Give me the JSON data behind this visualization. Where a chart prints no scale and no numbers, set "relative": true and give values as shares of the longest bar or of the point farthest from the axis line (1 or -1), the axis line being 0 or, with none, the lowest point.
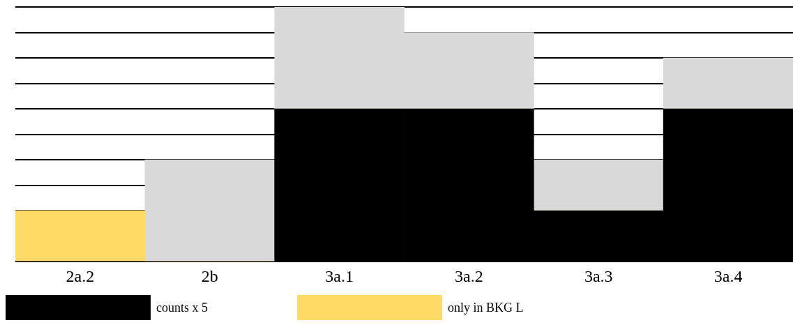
{
  "chart_data": {
    "type": "bar",
    "relative": true,
    "stacked": true,
    "grid": "y",
    "legend": "bottom",
    "categories": [
      "2a.2",
      "2b",
      "3a.1",
      "3a.2",
      "3a.3",
      "3a.4"
    ],
    "series": [
      {
        "name": "counts x 5",
        "color": "#000000",
        "values": [
          0,
          0,
          0.6,
          0.6,
          0.2,
          0.6
        ]
      },
      {
        "name": "only in BKG L",
        "color": "#ffd966",
        "values": [
          0.2,
          0,
          0,
          0,
          0,
          0
        ]
      },
      {
        "color": "#d9d9d9",
        "values": [
          0,
          0.4,
          0.4,
          0.3,
          0.2,
          0.2
        ]
      }
    ]
  }
}
